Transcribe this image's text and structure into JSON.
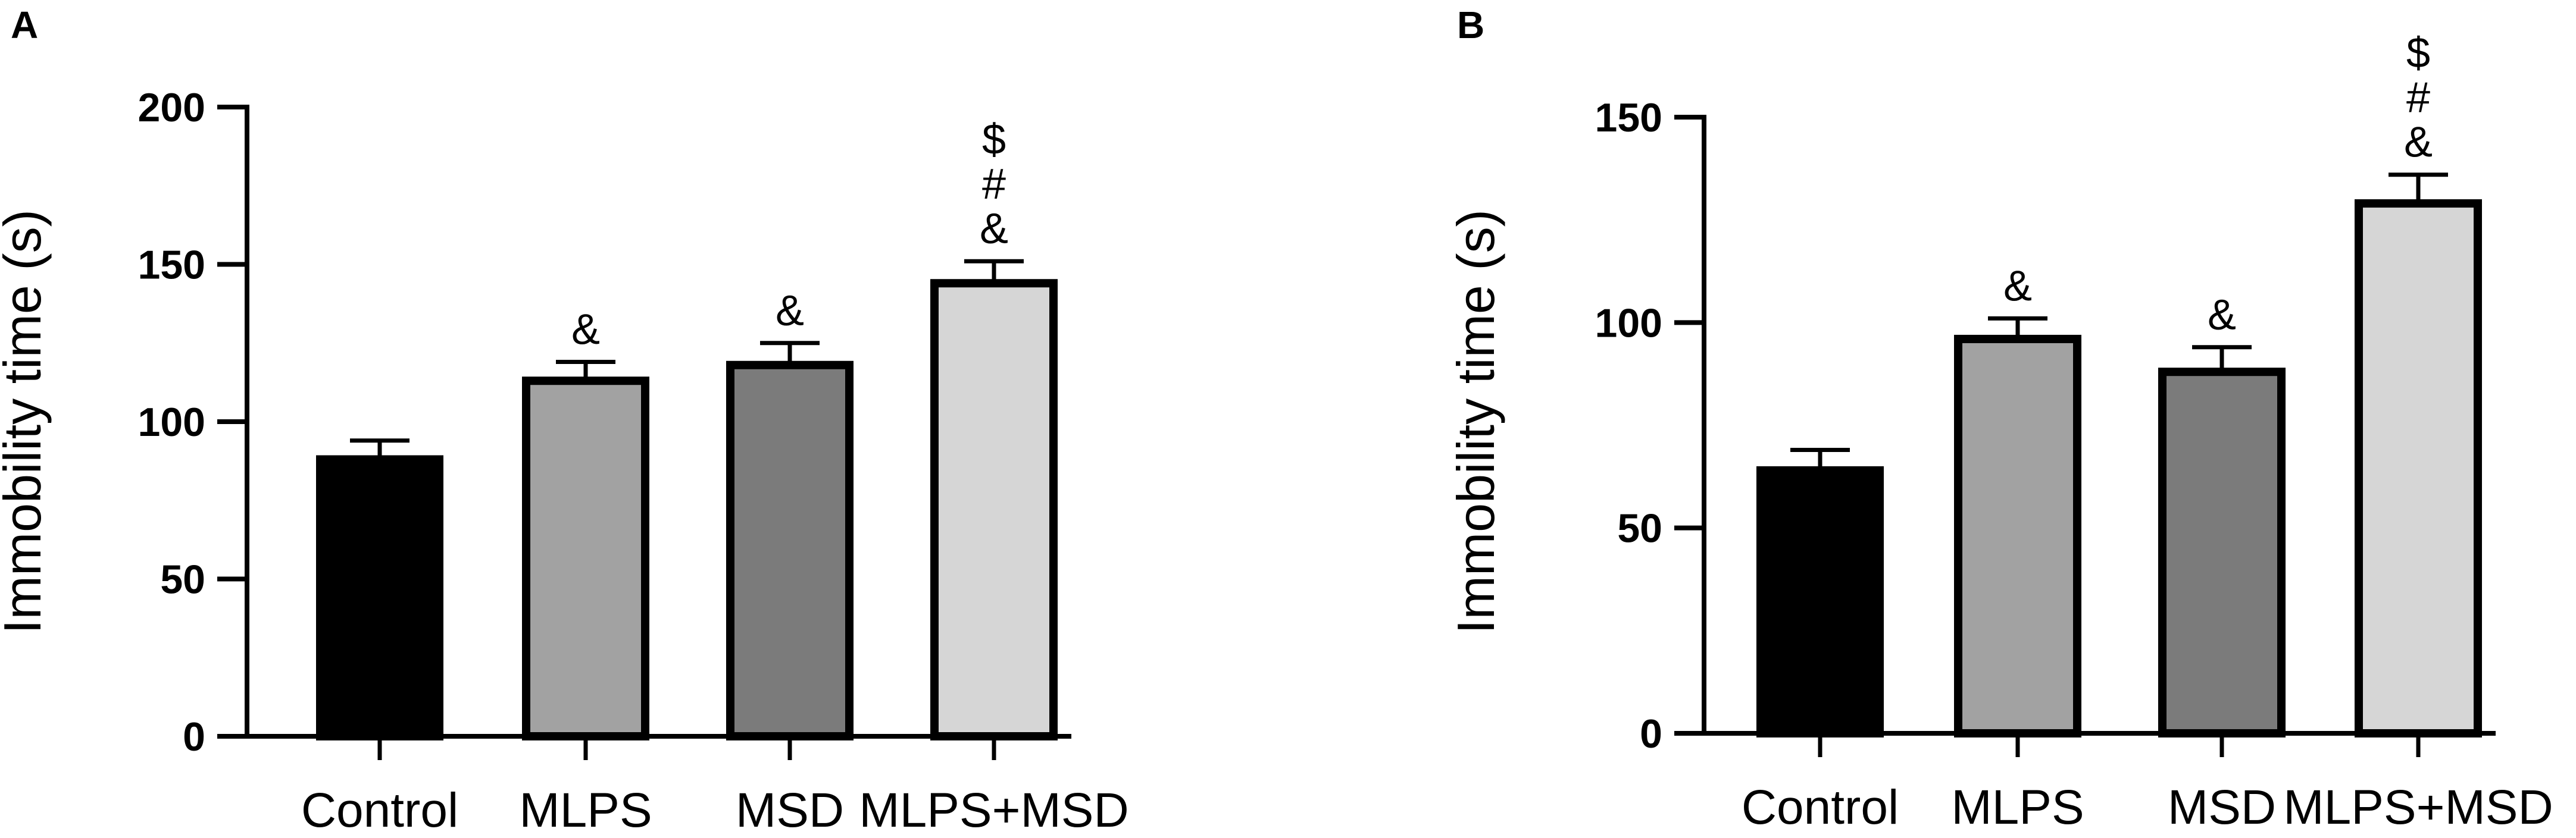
{
  "chart_data": [
    {
      "panel": "A",
      "type": "bar",
      "ylabel": "Immobility time (s)",
      "xlabel": "",
      "ylim": [
        0,
        200
      ],
      "yticks": [
        0,
        50,
        100,
        150,
        200
      ],
      "categories": [
        "Control",
        "MLPS",
        "MSD",
        "MLPS+MSD"
      ],
      "values": [
        88,
        113,
        118,
        144
      ],
      "errors": [
        6,
        6,
        7,
        7
      ],
      "colors": [
        "#000000",
        "#a2a2a2",
        "#7b7b7b",
        "#d6d6d6"
      ],
      "significance": [
        [],
        [
          "&"
        ],
        [
          "&"
        ],
        [
          "&",
          "#",
          "$"
        ]
      ],
      "grid": false
    },
    {
      "panel": "B",
      "type": "bar",
      "ylabel": "Immobility time (s)",
      "xlabel": "",
      "ylim": [
        0,
        150
      ],
      "yticks": [
        0,
        50,
        100,
        150
      ],
      "categories": [
        "Control",
        "MLPS",
        "MSD",
        "MLPS+MSD"
      ],
      "values": [
        64,
        96,
        88,
        129
      ],
      "errors": [
        5,
        5,
        6,
        7
      ],
      "colors": [
        "#000000",
        "#a2a2a2",
        "#7b7b7b",
        "#d6d6d6"
      ],
      "significance": [
        [],
        [
          "&"
        ],
        [
          "&"
        ],
        [
          "&",
          "#",
          "$"
        ]
      ],
      "grid": false
    }
  ]
}
